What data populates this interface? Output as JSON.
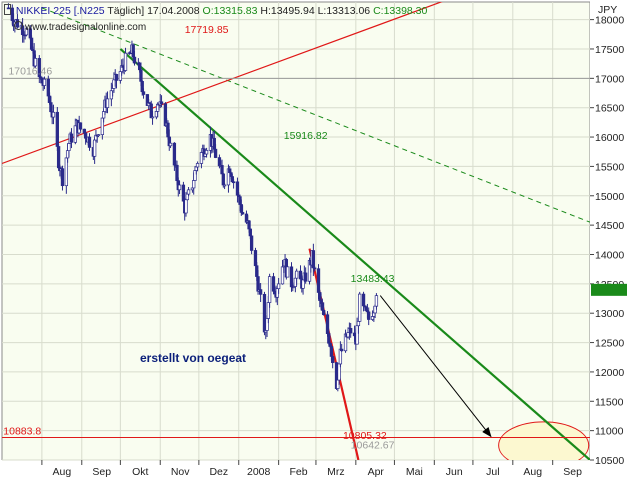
{
  "header": {
    "name": "NIKKEI 225 [.N225",
    "interval": "Täglich]",
    "date": "17.04.2008",
    "open": "O:13315.83",
    "high": "H:13495.94",
    "low": "L:13313.06",
    "close": "C:13398.30"
  },
  "watermark": "www.tradesignalonline.com",
  "annotation_text": "erstellt von oegeat",
  "currency": "JPY",
  "colors": {
    "background": "#f9fdf0",
    "grid": "#d8dccd",
    "green": "#1a8a1a",
    "red": "#e01818",
    "candle_up": "#ffffff",
    "candle_down": "#2a2a8a",
    "ellipse_fill": "#fcf8d0",
    "header_name": "#1a1aa0",
    "header_open": "#1a8a1a",
    "header_close": "#1a8a1a"
  },
  "chart_data": {
    "type": "candlestick",
    "title": "NIKKEI 225 [.N225 Täglich]",
    "y_axis": {
      "side": "right",
      "unit": "JPY",
      "range": [
        10500,
        18300
      ],
      "ticks": [
        18000,
        17500,
        17000,
        16500,
        16000,
        15500,
        15000,
        14500,
        14000,
        13500,
        13000,
        12500,
        12000,
        11500,
        11000,
        10500
      ]
    },
    "x_axis": {
      "range": [
        "2007-07-01",
        "2008-09-30"
      ],
      "ticks": [
        {
          "label": "Aug",
          "date": "2007-08-01"
        },
        {
          "label": "Sep",
          "date": "2007-09-01"
        },
        {
          "label": "Okt",
          "date": "2007-10-01"
        },
        {
          "label": "Nov",
          "date": "2007-11-01"
        },
        {
          "label": "Dez",
          "date": "2007-12-01"
        },
        {
          "label": "2008",
          "date": "2008-01-01"
        },
        {
          "label": "Feb",
          "date": "2008-02-01"
        },
        {
          "label": "Mrz",
          "date": "2008-03-01"
        },
        {
          "label": "Apr",
          "date": "2008-04-01"
        },
        {
          "label": "Mai",
          "date": "2008-05-01"
        },
        {
          "label": "Jun",
          "date": "2008-06-01"
        },
        {
          "label": "Jul",
          "date": "2008-07-01"
        },
        {
          "label": "Aug",
          "date": "2008-08-01"
        },
        {
          "label": "Sep",
          "date": "2008-09-01"
        }
      ]
    },
    "grid": true,
    "price_path": [
      [
        "2007-07-06",
        18200
      ],
      [
        "2007-07-10",
        18000
      ],
      [
        "2007-07-20",
        17800
      ],
      [
        "2007-07-30",
        17000
      ],
      [
        "2007-08-05",
        16800
      ],
      [
        "2007-08-10",
        16300
      ],
      [
        "2007-08-14",
        15600
      ],
      [
        "2007-08-17",
        15300
      ],
      [
        "2007-08-22",
        15900
      ],
      [
        "2007-08-28",
        16200
      ],
      [
        "2007-09-04",
        16050
      ],
      [
        "2007-09-10",
        15800
      ],
      [
        "2007-09-14",
        16150
      ],
      [
        "2007-09-20",
        16600
      ],
      [
        "2007-09-26",
        16900
      ],
      [
        "2007-10-01",
        17100
      ],
      [
        "2007-10-05",
        17300
      ],
      [
        "2007-10-10",
        17450
      ],
      [
        "2007-10-15",
        17150
      ],
      [
        "2007-10-20",
        16700
      ],
      [
        "2007-10-25",
        16400
      ],
      [
        "2007-10-30",
        16600
      ],
      [
        "2007-11-05",
        16300
      ],
      [
        "2007-11-10",
        15700
      ],
      [
        "2007-11-15",
        15200
      ],
      [
        "2007-11-20",
        14800
      ],
      [
        "2007-11-26",
        15200
      ],
      [
        "2007-11-30",
        15600
      ],
      [
        "2007-12-05",
        15800
      ],
      [
        "2007-12-10",
        16000
      ],
      [
        "2007-12-14",
        15700
      ],
      [
        "2007-12-20",
        15250
      ],
      [
        "2007-12-25",
        15500
      ],
      [
        "2008-01-04",
        14700
      ],
      [
        "2008-01-08",
        14500
      ],
      [
        "2008-01-12",
        14000
      ],
      [
        "2008-01-16",
        13500
      ],
      [
        "2008-01-22",
        12600
      ],
      [
        "2008-01-25",
        13600
      ],
      [
        "2008-01-30",
        13400
      ],
      [
        "2008-02-05",
        13900
      ],
      [
        "2008-02-10",
        13500
      ],
      [
        "2008-02-15",
        13600
      ],
      [
        "2008-02-20",
        13500
      ],
      [
        "2008-02-27",
        13950
      ],
      [
        "2008-03-03",
        13300
      ],
      [
        "2008-03-07",
        12900
      ],
      [
        "2008-03-12",
        12500
      ],
      [
        "2008-03-14",
        12200
      ],
      [
        "2008-03-17",
        11800
      ],
      [
        "2008-03-20",
        12300
      ],
      [
        "2008-03-25",
        12600
      ],
      [
        "2008-03-28",
        12700
      ],
      [
        "2008-04-01",
        12500
      ],
      [
        "2008-04-04",
        13200
      ],
      [
        "2008-04-08",
        13000
      ],
      [
        "2008-04-11",
        12900
      ],
      [
        "2008-04-15",
        13100
      ],
      [
        "2008-04-17",
        13398
      ]
    ],
    "lines": [
      {
        "color": "green",
        "style": "solid",
        "from": [
          "2007-10-01",
          17500
        ],
        "to": [
          "2008-09-30",
          10500
        ]
      },
      {
        "color": "green",
        "style": "dashed",
        "from": [
          "2007-08-01",
          18200
        ],
        "to": [
          "2008-09-30",
          14550
        ]
      },
      {
        "color": "red",
        "style": "solid",
        "from": [
          "2007-07-01",
          15550
        ],
        "to": [
          "2008-07-01",
          18500
        ]
      },
      {
        "color": "red",
        "style": "solid",
        "from": [
          "2008-02-25",
          14100
        ],
        "to": [
          "2008-04-03",
          10500
        ]
      },
      {
        "color": "red",
        "style": "horizontal",
        "y": 10883.8
      },
      {
        "color": "grey",
        "style": "horizontal",
        "y": 17000
      }
    ],
    "projection_arrow": {
      "from": [
        "2008-04-20",
        13300
      ],
      "to": [
        "2008-07-15",
        10900
      ]
    },
    "ellipse": {
      "center": [
        "2008-08-25",
        10750
      ],
      "width_days": 70,
      "height_points": 800
    },
    "level_labels": [
      {
        "text": "17719.85",
        "color": "red",
        "date": "2007-11-20",
        "y": 17719.85
      },
      {
        "text": "15916.82",
        "color": "green",
        "date": "2008-02-05",
        "y": 15916.82
      },
      {
        "text": "13483.43",
        "color": "green",
        "date": "2008-03-28",
        "y": 13483.43
      },
      {
        "text": "10805.32",
        "color": "red",
        "date": "2008-03-22",
        "y": 10805.32
      },
      {
        "text": "10883.8",
        "color": "red",
        "date": "2007-07-02",
        "y": 10883.8
      },
      {
        "text": "10642.67",
        "color": "grey",
        "date": "2008-03-28",
        "y": 10642.67
      },
      {
        "text": "17016.46",
        "color": "grey",
        "date": "2007-07-06",
        "y": 17016.46
      }
    ]
  }
}
